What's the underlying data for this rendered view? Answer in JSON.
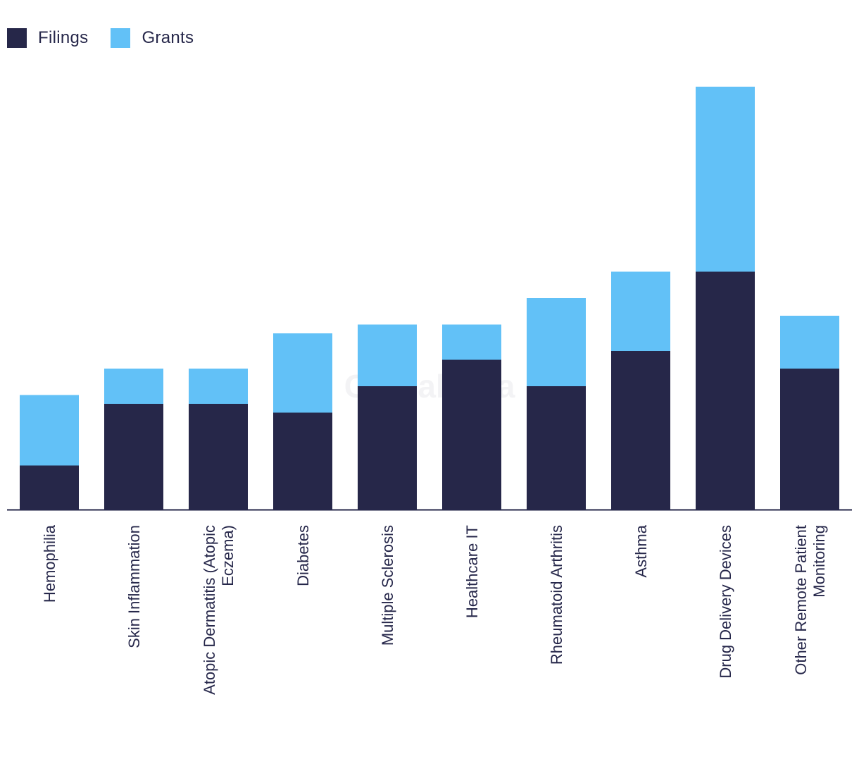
{
  "colors": {
    "filings": "#262749",
    "grants": "#62c1f7",
    "axis": "#26274a"
  },
  "watermark": "GlobalData",
  "chart_data": {
    "type": "bar",
    "stacked": true,
    "title": "",
    "xlabel": "",
    "ylabel": "",
    "ylim": [
      0,
      48
    ],
    "grid": false,
    "legend": "top-left",
    "categories": [
      [
        "Hemophilia"
      ],
      [
        "Skin Inflammation"
      ],
      [
        "Atopic Dermatitis (Atopic",
        "Eczema)"
      ],
      [
        "Diabetes"
      ],
      [
        "Multiple Sclerosis"
      ],
      [
        "Healthcare IT"
      ],
      [
        "Rheumatoid Arthritis"
      ],
      [
        "Asthma"
      ],
      [
        "Drug Delivery Devices"
      ],
      [
        "Other Remote Patient",
        "Monitoring"
      ]
    ],
    "series": [
      {
        "name": "Filings",
        "values": [
          5,
          12,
          12,
          11,
          14,
          17,
          14,
          18,
          27,
          16
        ]
      },
      {
        "name": "Grants",
        "values": [
          8,
          4,
          4,
          9,
          7,
          4,
          10,
          9,
          21,
          6
        ]
      }
    ]
  }
}
